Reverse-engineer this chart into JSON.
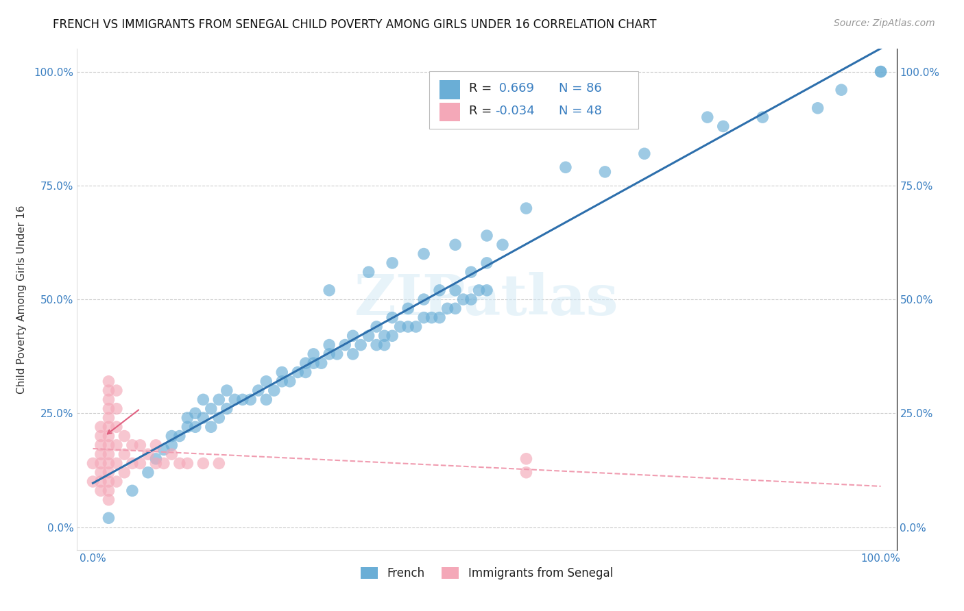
{
  "title": "FRENCH VS IMMIGRANTS FROM SENEGAL CHILD POVERTY AMONG GIRLS UNDER 16 CORRELATION CHART",
  "source": "Source: ZipAtlas.com",
  "ylabel": "Child Poverty Among Girls Under 16",
  "xlim": [
    -0.02,
    1.02
  ],
  "ylim": [
    -0.05,
    1.05
  ],
  "xtick_positions": [
    0.0,
    1.0
  ],
  "xtick_labels": [
    "0.0%",
    "100.0%"
  ],
  "ytick_positions": [
    0.0,
    0.25,
    0.5,
    0.75,
    1.0
  ],
  "ytick_labels": [
    "0.0%",
    "25.0%",
    "50.0%",
    "75.0%",
    "100.0%"
  ],
  "watermark": "ZIPatlas",
  "french_color": "#6aaed6",
  "senegal_color": "#f4a8b8",
  "french_line_color": "#2d6fac",
  "senegal_line_color": "#f4a8b8",
  "french_R": 0.669,
  "french_N": 86,
  "senegal_R": -0.034,
  "senegal_N": 48,
  "legend_label_french": "French",
  "legend_label_senegal": "Immigrants from Senegal",
  "french_scatter_x": [
    0.02,
    0.05,
    0.07,
    0.08,
    0.09,
    0.1,
    0.1,
    0.11,
    0.12,
    0.12,
    0.13,
    0.13,
    0.14,
    0.14,
    0.15,
    0.15,
    0.16,
    0.16,
    0.17,
    0.17,
    0.18,
    0.19,
    0.2,
    0.21,
    0.22,
    0.22,
    0.23,
    0.24,
    0.24,
    0.25,
    0.26,
    0.27,
    0.27,
    0.28,
    0.28,
    0.29,
    0.3,
    0.3,
    0.31,
    0.32,
    0.33,
    0.33,
    0.34,
    0.35,
    0.36,
    0.37,
    0.37,
    0.38,
    0.39,
    0.4,
    0.41,
    0.42,
    0.43,
    0.44,
    0.45,
    0.46,
    0.47,
    0.48,
    0.49,
    0.5,
    0.36,
    0.38,
    0.4,
    0.42,
    0.44,
    0.46,
    0.48,
    0.5,
    0.52,
    0.3,
    0.35,
    0.38,
    0.42,
    0.46,
    0.5,
    0.55,
    0.6,
    0.65,
    0.7,
    0.78,
    0.8,
    0.85,
    0.92,
    0.95,
    1.0,
    1.0
  ],
  "french_scatter_y": [
    0.02,
    0.08,
    0.12,
    0.15,
    0.17,
    0.18,
    0.2,
    0.2,
    0.22,
    0.24,
    0.22,
    0.25,
    0.24,
    0.28,
    0.22,
    0.26,
    0.24,
    0.28,
    0.26,
    0.3,
    0.28,
    0.28,
    0.28,
    0.3,
    0.28,
    0.32,
    0.3,
    0.32,
    0.34,
    0.32,
    0.34,
    0.34,
    0.36,
    0.36,
    0.38,
    0.36,
    0.38,
    0.4,
    0.38,
    0.4,
    0.38,
    0.42,
    0.4,
    0.42,
    0.4,
    0.4,
    0.42,
    0.42,
    0.44,
    0.44,
    0.44,
    0.46,
    0.46,
    0.46,
    0.48,
    0.48,
    0.5,
    0.5,
    0.52,
    0.52,
    0.44,
    0.46,
    0.48,
    0.5,
    0.52,
    0.52,
    0.56,
    0.58,
    0.62,
    0.52,
    0.56,
    0.58,
    0.6,
    0.62,
    0.64,
    0.7,
    0.79,
    0.78,
    0.82,
    0.9,
    0.88,
    0.9,
    0.92,
    0.96,
    1.0,
    1.0
  ],
  "senegal_scatter_x": [
    0.0,
    0.0,
    0.01,
    0.01,
    0.01,
    0.01,
    0.01,
    0.01,
    0.01,
    0.01,
    0.02,
    0.02,
    0.02,
    0.02,
    0.02,
    0.02,
    0.02,
    0.02,
    0.02,
    0.02,
    0.02,
    0.02,
    0.02,
    0.02,
    0.03,
    0.03,
    0.03,
    0.03,
    0.03,
    0.03,
    0.04,
    0.04,
    0.04,
    0.05,
    0.05,
    0.06,
    0.06,
    0.07,
    0.08,
    0.08,
    0.09,
    0.1,
    0.11,
    0.12,
    0.14,
    0.16,
    0.55,
    0.55
  ],
  "senegal_scatter_y": [
    0.1,
    0.14,
    0.08,
    0.1,
    0.12,
    0.14,
    0.16,
    0.18,
    0.2,
    0.22,
    0.06,
    0.08,
    0.1,
    0.12,
    0.14,
    0.16,
    0.18,
    0.2,
    0.22,
    0.24,
    0.26,
    0.28,
    0.3,
    0.32,
    0.1,
    0.14,
    0.18,
    0.22,
    0.26,
    0.3,
    0.12,
    0.16,
    0.2,
    0.14,
    0.18,
    0.14,
    0.18,
    0.16,
    0.14,
    0.18,
    0.14,
    0.16,
    0.14,
    0.14,
    0.14,
    0.14,
    0.12,
    0.15
  ],
  "background_color": "#ffffff",
  "grid_color": "#cccccc",
  "title_fontsize": 12,
  "axis_label_fontsize": 11,
  "tick_label_fontsize": 11
}
